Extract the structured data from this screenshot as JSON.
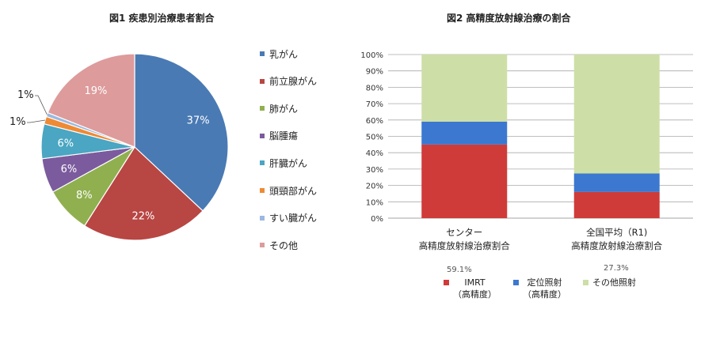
{
  "chart_data": [
    {
      "type": "pie",
      "title": "図1 疾患別治療患者割合",
      "categories": [
        "乳がん",
        "前立腺がん",
        "肺がん",
        "脳腫瘍",
        "肝臓がん",
        "頭頸部がん",
        "すい臓がん",
        "その他"
      ],
      "values": [
        37,
        22,
        8,
        6,
        6,
        1.3,
        0.7,
        19
      ],
      "data_labels": [
        "37%",
        "22%",
        "8%",
        "6%",
        "6%",
        "1%",
        "1%",
        "19%"
      ],
      "colors": [
        "#4a7ab4",
        "#b84643",
        "#90b050",
        "#7b5b9d",
        "#4aa6c2",
        "#ee8a35",
        "#9ab9e0",
        "#de9b9b"
      ],
      "legend": "right"
    },
    {
      "type": "bar",
      "stacked": true,
      "title": "図2 高精度放射線治療の割合",
      "categories": [
        "センター\n高精度放射線治療割合",
        "全国平均（R1)\n高精度放射線治療割合"
      ],
      "series": [
        {
          "name": "IMRT\n（高精度）",
          "values": [
            45,
            16
          ]
        },
        {
          "name": "定位照射\n（高精度）",
          "values": [
            14,
            11.3
          ]
        },
        {
          "name": "その他照射",
          "values": [
            41,
            72.7
          ]
        }
      ],
      "colors": [
        "#cf3b38",
        "#3c78d0",
        "#cddfa6"
      ],
      "ylim": [
        0,
        100
      ],
      "yticks": [
        "0%",
        "10%",
        "20%",
        "30%",
        "40%",
        "50%",
        "60%",
        "70%",
        "80%",
        "90%",
        "100%"
      ],
      "annotations": [
        "59.1%",
        "27.3%"
      ],
      "grid": true,
      "legend": "bottom"
    }
  ]
}
